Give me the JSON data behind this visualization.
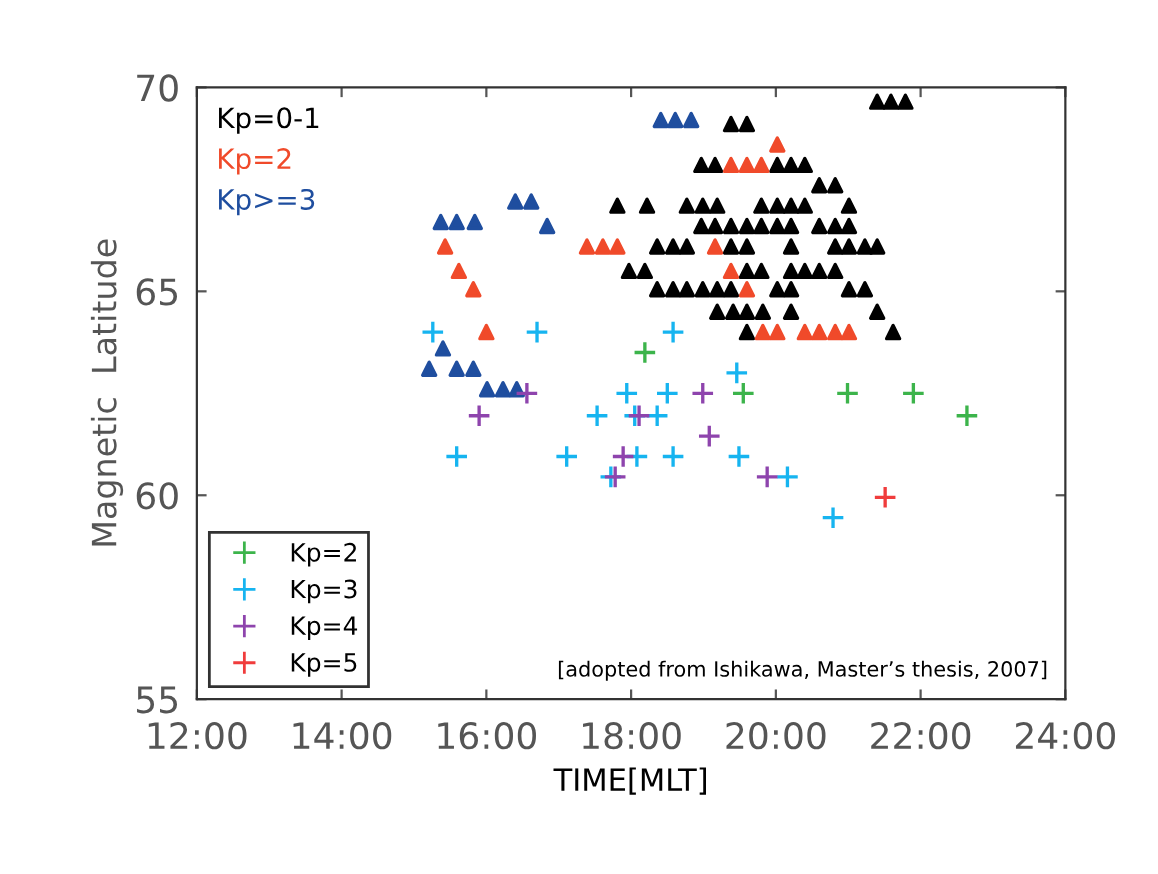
{
  "chart_data": {
    "type": "scatter",
    "xlabel": "TIME[MLT]",
    "ylabel": "Magnetic  Latitude",
    "xlim": [
      12,
      24
    ],
    "xticks": [
      {
        "value": 12,
        "label": "12:00"
      },
      {
        "value": 14,
        "label": "14:00"
      },
      {
        "value": 16,
        "label": "16:00"
      },
      {
        "value": 18,
        "label": "18:00"
      },
      {
        "value": 20,
        "label": "20:00"
      },
      {
        "value": 22,
        "label": "22:00"
      },
      {
        "value": 24,
        "label": "24:00"
      }
    ],
    "ylim": [
      55,
      70
    ],
    "yticks": [
      55,
      60,
      65,
      70
    ],
    "legend": "lower left",
    "annotations": [
      "[adopted from Ishikawa, Master’s thesis, 2007]"
    ],
    "series": [
      {
        "name": "Kp=0-1",
        "color": "#000000",
        "marker": "triangle",
        "x": [
          21.4,
          21.59,
          21.79,
          19.38,
          19.6,
          18.97,
          19.16,
          20.02,
          20.21,
          20.4,
          20.6,
          20.82,
          17.81,
          18.22,
          18.77,
          18.99,
          19.19,
          19.8,
          20.02,
          20.21,
          20.4,
          21.01,
          18.97,
          19.16,
          19.38,
          19.6,
          19.8,
          20.02,
          20.21,
          20.6,
          20.82,
          21.01,
          18.36,
          18.58,
          18.77,
          19.38,
          19.6,
          20.21,
          20.82,
          21.01,
          21.23,
          21.4,
          17.97,
          18.19,
          19.6,
          19.8,
          20.21,
          20.4,
          20.6,
          20.82,
          18.36,
          18.58,
          18.77,
          18.99,
          19.19,
          19.38,
          20.02,
          20.21,
          21.01,
          21.23,
          19.19,
          19.41,
          19.6,
          19.82,
          20.21,
          21.4,
          19.6,
          21.62
        ],
        "values": [
          69.65,
          69.65,
          69.65,
          69.1,
          69.1,
          68.1,
          68.1,
          68.1,
          68.1,
          68.1,
          67.6,
          67.6,
          67.1,
          67.1,
          67.1,
          67.1,
          67.1,
          67.1,
          67.1,
          67.1,
          67.1,
          67.1,
          66.6,
          66.6,
          66.6,
          66.6,
          66.6,
          66.6,
          66.6,
          66.6,
          66.6,
          66.6,
          66.1,
          66.1,
          66.1,
          66.1,
          66.1,
          66.1,
          66.1,
          66.1,
          66.1,
          66.1,
          65.5,
          65.5,
          65.5,
          65.5,
          65.5,
          65.5,
          65.5,
          65.5,
          65.05,
          65.05,
          65.05,
          65.05,
          65.05,
          65.05,
          65.05,
          65.05,
          65.05,
          65.05,
          64.5,
          64.5,
          64.5,
          64.5,
          64.5,
          64.5,
          64.0,
          64.0
        ]
      },
      {
        "name": "Kp=2",
        "color": "#f04a2a",
        "marker": "triangle",
        "x": [
          17.39,
          17.61,
          17.81,
          19.16,
          15.43,
          15.62,
          15.82,
          16.0,
          20.02,
          19.38,
          19.6,
          19.8,
          19.38,
          19.6,
          19.82,
          20.02,
          20.4,
          20.6,
          20.82,
          21.01
        ],
        "values": [
          66.1,
          66.1,
          66.1,
          66.1,
          66.1,
          65.5,
          65.05,
          64.0,
          68.6,
          68.1,
          68.1,
          68.1,
          65.5,
          65.05,
          64.0,
          64.0,
          64.0,
          64.0,
          64.0,
          64.0
        ]
      },
      {
        "name": "Kp>=3",
        "color": "#1f4e9f",
        "marker": "triangle",
        "x": [
          18.41,
          18.61,
          18.83,
          15.37,
          15.59,
          15.84,
          16.4,
          16.62,
          16.84,
          15.4,
          15.21,
          15.59,
          15.82,
          16.01,
          16.23,
          16.42
        ],
        "values": [
          69.2,
          69.2,
          69.2,
          66.7,
          66.7,
          66.7,
          67.2,
          67.2,
          66.6,
          63.6,
          63.1,
          63.1,
          63.1,
          62.6,
          62.6,
          62.6
        ]
      },
      {
        "name": "Kp=2",
        "color": "#3cb44b",
        "marker": "cross",
        "x": [
          18.19,
          19.55,
          20.99,
          21.9,
          22.64
        ],
        "values": [
          63.5,
          62.5,
          62.5,
          62.5,
          61.95
        ]
      },
      {
        "name": "Kp=3",
        "color": "#16b4f0",
        "marker": "cross",
        "x": [
          15.26,
          16.7,
          18.58,
          19.46,
          17.94,
          18.5,
          17.53,
          18.05,
          18.36,
          15.59,
          17.11,
          18.08,
          18.58,
          19.49,
          17.72,
          20.16,
          20.79
        ],
        "values": [
          64.0,
          64.0,
          64.0,
          63.0,
          62.5,
          62.5,
          61.95,
          61.95,
          61.95,
          60.95,
          60.95,
          60.95,
          60.95,
          60.95,
          60.45,
          60.45,
          59.45
        ]
      },
      {
        "name": "Kp=4",
        "color": "#8e44ad",
        "marker": "cross",
        "x": [
          16.56,
          15.9,
          18.99,
          18.11,
          19.08,
          17.89,
          17.78,
          19.88
        ],
        "values": [
          62.5,
          61.95,
          62.5,
          61.95,
          61.45,
          60.95,
          60.45,
          60.45
        ]
      },
      {
        "name": "Kp=5",
        "color": "#f03c3c",
        "marker": "cross",
        "x": [
          21.51
        ],
        "values": [
          59.95
        ]
      }
    ]
  }
}
